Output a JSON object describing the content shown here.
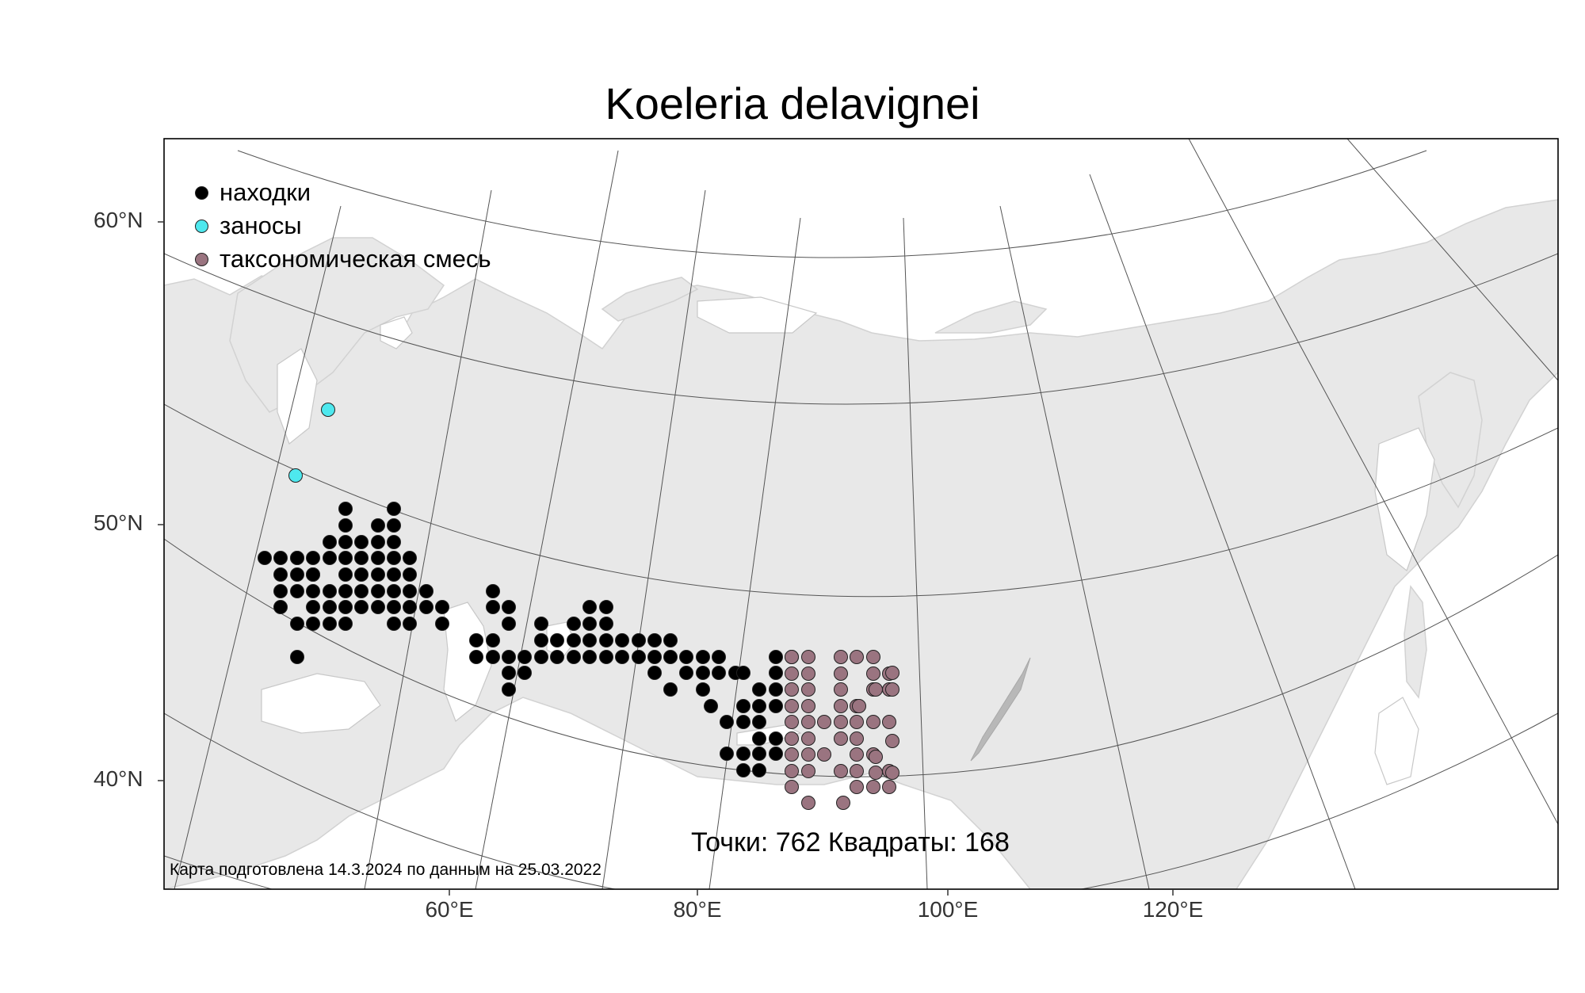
{
  "title": "Koeleria delavignei",
  "latitude_labels": [
    "60°N",
    "50°N",
    "40°N"
  ],
  "longitude_labels": [
    "60°E",
    "80°E",
    "100°E",
    "120°E"
  ],
  "legend": [
    {
      "label": "находки",
      "color": "#000000"
    },
    {
      "label": "заносы",
      "color": "#4ee8ee"
    },
    {
      "label": "таксономическая смесь",
      "color": "#9a7480"
    }
  ],
  "stats": "Точки: 762 Квадраты: 168",
  "credit": "Карта подготовлена 14.3.2024 по данным на 25.03.2022",
  "colors": {
    "land": "#e8e8e8",
    "graticule": "#555555",
    "finds": "#000000",
    "introductions": "#4ee8ee",
    "mixture": "#9a7480"
  }
}
